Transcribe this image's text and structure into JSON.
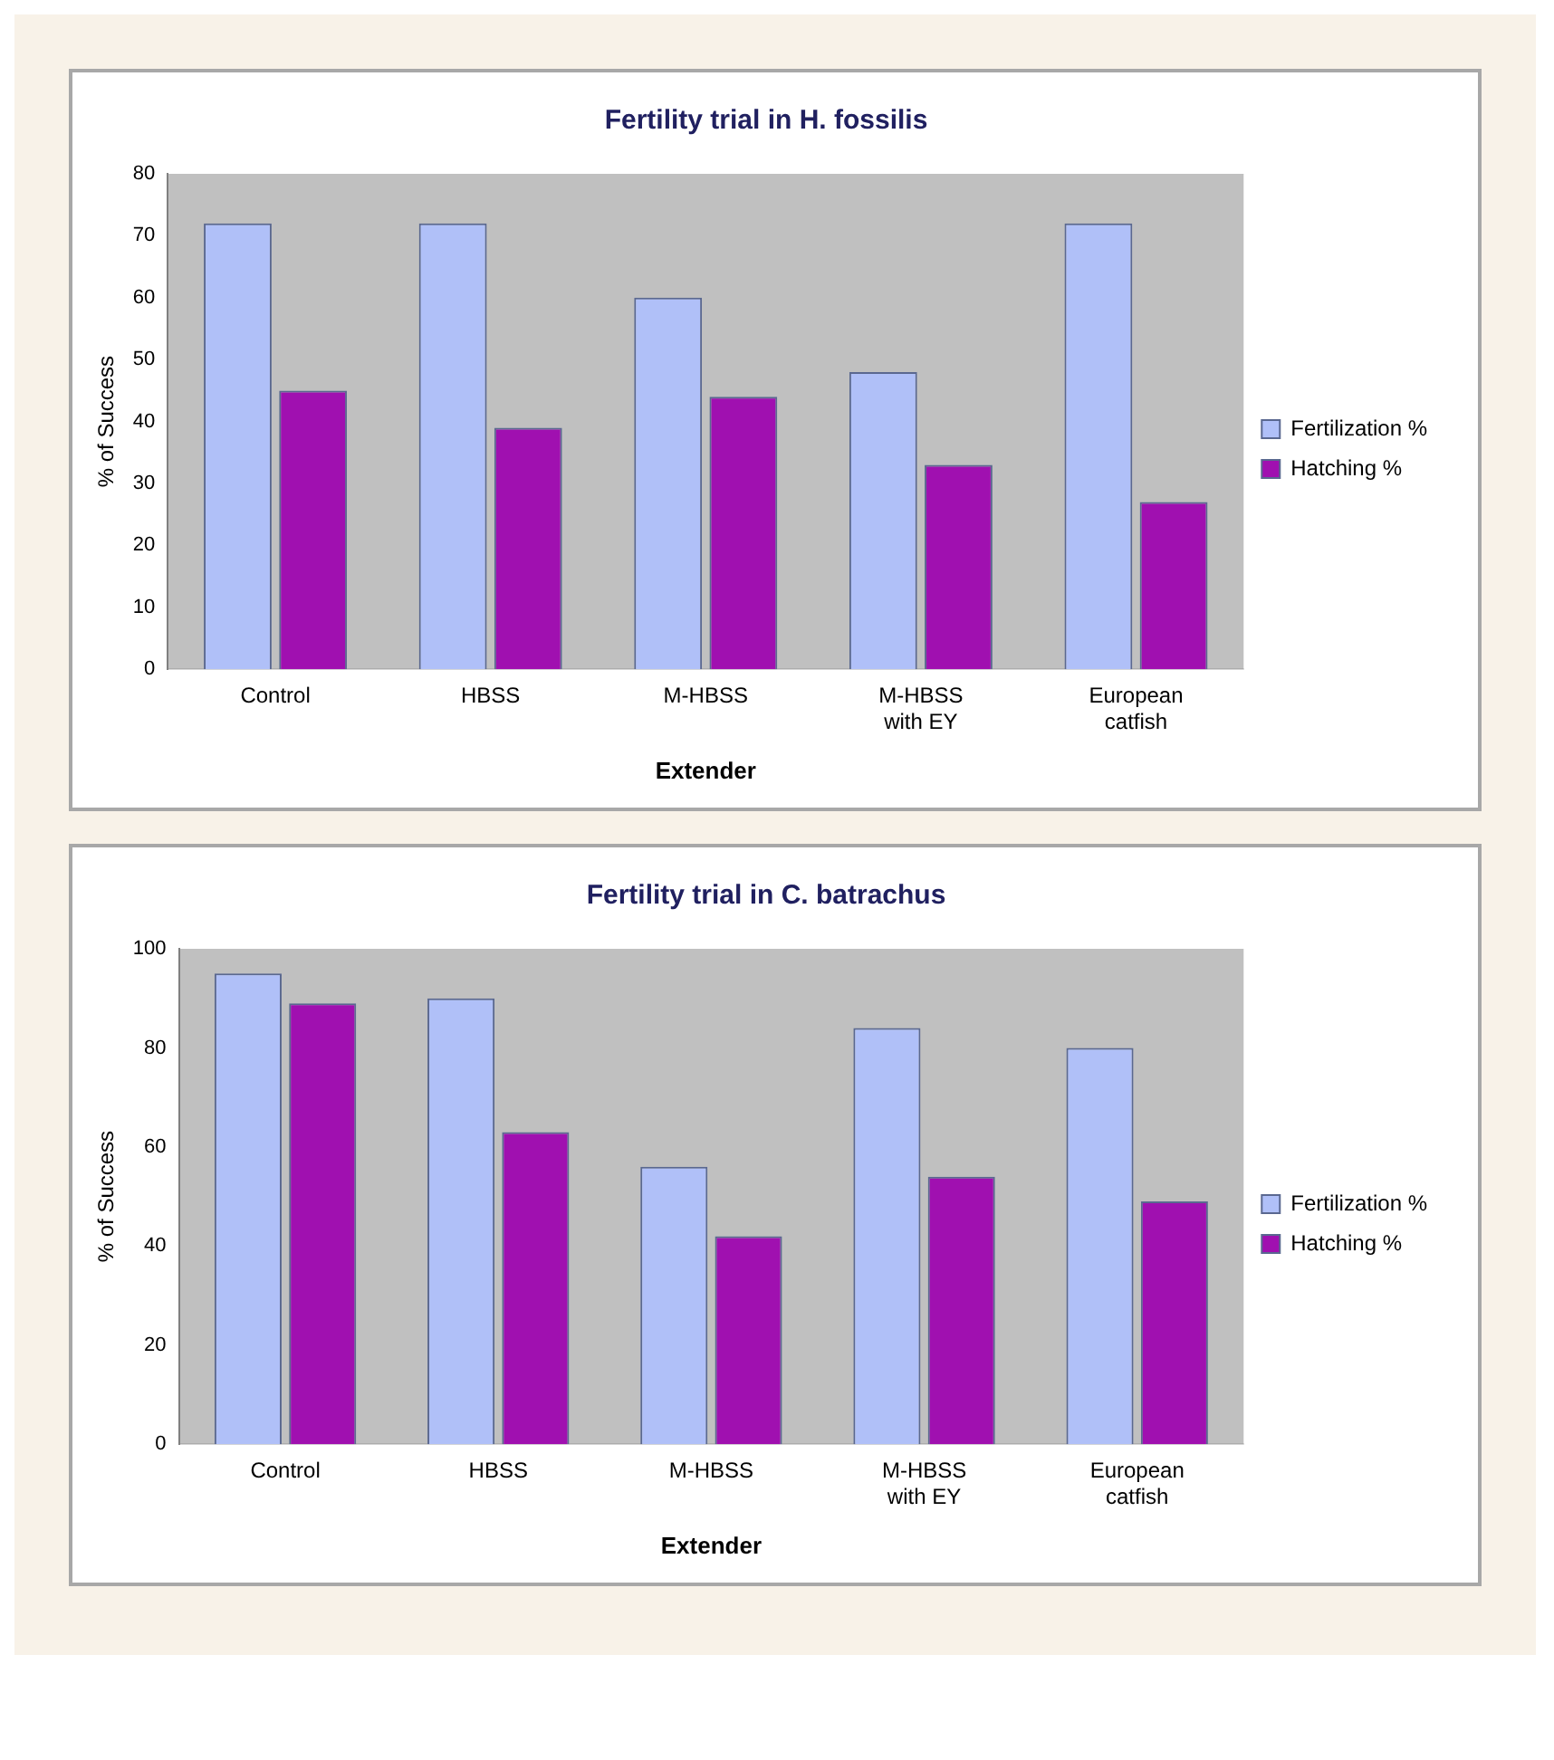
{
  "chart_data": [
    {
      "type": "bar",
      "title": "Fertility trial in H. fossilis",
      "xlabel": "Extender",
      "ylabel": "% of Success",
      "categories": [
        "Control",
        "HBSS",
        "M-HBSS",
        "M-HBSS with EY",
        "European catfish"
      ],
      "series": [
        {
          "name": "Fertilization %",
          "color": "#b0c0f8",
          "values": [
            72,
            72,
            60,
            48,
            72
          ]
        },
        {
          "name": "Hatching %",
          "color": "#a010b0",
          "values": [
            45,
            39,
            44,
            33,
            27
          ]
        }
      ],
      "ylim": [
        0,
        80
      ],
      "yticks": [
        0,
        10,
        20,
        30,
        40,
        50,
        60,
        70,
        80
      ],
      "grid": false,
      "legend": "right"
    },
    {
      "type": "bar",
      "title": "Fertility trial in C. batrachus",
      "xlabel": "Extender",
      "ylabel": "% of Success",
      "categories": [
        "Control",
        "HBSS",
        "M-HBSS",
        "M-HBSS with EY",
        "European catfish"
      ],
      "series": [
        {
          "name": "Fertilization %",
          "color": "#b0c0f8",
          "values": [
            95,
            90,
            56,
            84,
            80
          ]
        },
        {
          "name": "Hatching %",
          "color": "#a010b0",
          "values": [
            89,
            63,
            42,
            54,
            49
          ]
        }
      ],
      "ylim": [
        0,
        100
      ],
      "yticks": [
        0,
        20,
        40,
        60,
        80,
        100
      ],
      "grid": false,
      "legend": "right"
    }
  ]
}
